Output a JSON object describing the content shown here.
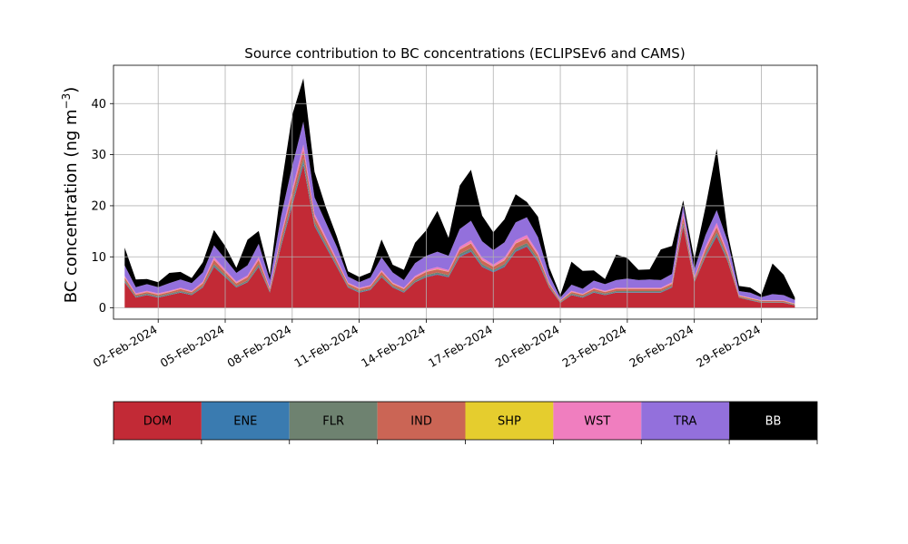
{
  "chart_data": {
    "type": "area",
    "stacked": true,
    "title": "Source contribution to BC concentrations (ECLIPSEv6 and CAMS)",
    "ylabel": "BC concentration (ng m",
    "ylabel_superscript": "−3",
    "ylabel_close": ")",
    "xlabel": "",
    "xlim": [
      "2024-01-31T00:00",
      "2024-03-02T12:00"
    ],
    "ylim": [
      -2.2,
      47.5
    ],
    "grid": true,
    "x_ticks": [
      "2024-02-02",
      "2024-02-05",
      "2024-02-08",
      "2024-02-11",
      "2024-02-14",
      "2024-02-17",
      "2024-02-20",
      "2024-02-23",
      "2024-02-26",
      "2024-02-29"
    ],
    "x_tick_labels": [
      "02-Feb-2024",
      "05-Feb-2024",
      "08-Feb-2024",
      "11-Feb-2024",
      "14-Feb-2024",
      "17-Feb-2024",
      "20-Feb-2024",
      "23-Feb-2024",
      "26-Feb-2024",
      "29-Feb-2024"
    ],
    "y_ticks": [
      0,
      10,
      20,
      30,
      40
    ],
    "y_tick_labels": [
      "0",
      "10",
      "20",
      "30",
      "40"
    ],
    "x": [
      "2024-01-31T12:00",
      "2024-02-01T00:00",
      "2024-02-01T12:00",
      "2024-02-02T00:00",
      "2024-02-02T12:00",
      "2024-02-03T00:00",
      "2024-02-03T12:00",
      "2024-02-04T00:00",
      "2024-02-04T12:00",
      "2024-02-05T00:00",
      "2024-02-05T12:00",
      "2024-02-06T00:00",
      "2024-02-06T12:00",
      "2024-02-07T00:00",
      "2024-02-07T12:00",
      "2024-02-08T00:00",
      "2024-02-08T12:00",
      "2024-02-09T00:00",
      "2024-02-09T12:00",
      "2024-02-10T00:00",
      "2024-02-10T12:00",
      "2024-02-11T00:00",
      "2024-02-11T12:00",
      "2024-02-12T00:00",
      "2024-02-12T12:00",
      "2024-02-13T00:00",
      "2024-02-13T12:00",
      "2024-02-14T00:00",
      "2024-02-14T12:00",
      "2024-02-15T00:00",
      "2024-02-15T12:00",
      "2024-02-16T00:00",
      "2024-02-16T12:00",
      "2024-02-17T00:00",
      "2024-02-17T12:00",
      "2024-02-18T00:00",
      "2024-02-18T12:00",
      "2024-02-19T00:00",
      "2024-02-19T12:00",
      "2024-02-20T00:00",
      "2024-02-20T12:00",
      "2024-02-21T00:00",
      "2024-02-21T12:00",
      "2024-02-22T00:00",
      "2024-02-22T12:00",
      "2024-02-23T00:00",
      "2024-02-23T12:00",
      "2024-02-24T00:00",
      "2024-02-24T12:00",
      "2024-02-25T00:00",
      "2024-02-25T12:00",
      "2024-02-26T00:00",
      "2024-02-26T12:00",
      "2024-02-27T00:00",
      "2024-02-27T12:00",
      "2024-02-28T00:00",
      "2024-02-28T12:00",
      "2024-02-29T00:00",
      "2024-02-29T12:00",
      "2024-03-01T00:00",
      "2024-03-01T12:00"
    ],
    "series": [
      {
        "name": "DOM",
        "color": "#c22a36",
        "values": [
          5.0,
          2.0,
          2.5,
          2.0,
          2.5,
          3.0,
          2.5,
          4.0,
          8.0,
          6.0,
          4.0,
          5.0,
          8.0,
          3.0,
          12.0,
          20.0,
          28.0,
          16.0,
          12.0,
          8.0,
          4.0,
          3.0,
          3.5,
          6.0,
          4.0,
          3.0,
          5.0,
          6.0,
          6.5,
          6.0,
          10.0,
          11.0,
          8.0,
          7.0,
          8.0,
          11.0,
          12.0,
          9.0,
          4.0,
          1.0,
          2.5,
          2.0,
          3.0,
          2.5,
          3.0,
          3.0,
          3.0,
          3.0,
          3.0,
          4.0,
          16.0,
          5.0,
          10.0,
          14.0,
          9.0,
          2.0,
          1.5,
          1.0,
          1.0,
          1.0,
          0.5
        ]
      },
      {
        "name": "ENE",
        "color": "#3a7bb0",
        "values": [
          0.15,
          0.1,
          0.1,
          0.1,
          0.1,
          0.1,
          0.1,
          0.1,
          0.2,
          0.15,
          0.1,
          0.1,
          0.2,
          0.1,
          0.3,
          0.4,
          0.5,
          0.3,
          0.25,
          0.2,
          0.1,
          0.1,
          0.1,
          0.15,
          0.1,
          0.1,
          0.1,
          0.15,
          0.15,
          0.15,
          0.2,
          0.2,
          0.2,
          0.15,
          0.2,
          0.2,
          0.2,
          0.2,
          0.1,
          0.05,
          0.1,
          0.1,
          0.1,
          0.1,
          0.1,
          0.1,
          0.1,
          0.1,
          0.1,
          0.1,
          0.3,
          0.1,
          0.2,
          0.3,
          0.2,
          0.05,
          0.05,
          0.05,
          0.05,
          0.05,
          0.05
        ]
      },
      {
        "name": "FLR",
        "color": "#6e8270",
        "values": [
          0.3,
          0.2,
          0.2,
          0.2,
          0.2,
          0.2,
          0.2,
          0.2,
          0.4,
          0.3,
          0.2,
          0.3,
          0.4,
          0.2,
          0.5,
          0.6,
          0.8,
          0.5,
          0.4,
          0.3,
          0.2,
          0.2,
          0.2,
          0.3,
          0.2,
          0.2,
          0.3,
          0.3,
          0.3,
          0.3,
          0.4,
          0.5,
          0.4,
          0.3,
          0.4,
          0.5,
          0.5,
          0.4,
          0.2,
          0.1,
          0.2,
          0.2,
          0.2,
          0.2,
          0.2,
          0.2,
          0.2,
          0.2,
          0.2,
          0.2,
          0.5,
          0.2,
          0.4,
          0.5,
          0.4,
          0.1,
          0.1,
          0.1,
          0.1,
          0.1,
          0.1
        ]
      },
      {
        "name": "IND",
        "color": "#cb6555",
        "values": [
          0.5,
          0.3,
          0.3,
          0.3,
          0.3,
          0.4,
          0.3,
          0.5,
          0.8,
          0.6,
          0.5,
          0.6,
          0.8,
          0.4,
          1.0,
          1.4,
          1.6,
          1.0,
          0.8,
          0.6,
          0.4,
          0.4,
          0.4,
          0.6,
          0.4,
          0.4,
          0.5,
          0.6,
          0.6,
          0.6,
          0.8,
          0.9,
          0.7,
          0.6,
          0.7,
          0.9,
          0.9,
          0.7,
          0.4,
          0.2,
          0.3,
          0.3,
          0.4,
          0.3,
          0.4,
          0.4,
          0.4,
          0.4,
          0.4,
          0.4,
          1.0,
          0.4,
          0.8,
          1.0,
          0.7,
          0.2,
          0.2,
          0.2,
          0.2,
          0.2,
          0.1
        ]
      },
      {
        "name": "SHP",
        "color": "#e5cd2e",
        "values": [
          0.05,
          0.05,
          0.05,
          0.05,
          0.05,
          0.05,
          0.05,
          0.05,
          0.05,
          0.05,
          0.05,
          0.05,
          0.05,
          0.05,
          0.05,
          0.05,
          0.05,
          0.05,
          0.05,
          0.05,
          0.05,
          0.05,
          0.05,
          0.05,
          0.05,
          0.05,
          0.05,
          0.05,
          0.05,
          0.05,
          0.05,
          0.05,
          0.05,
          0.05,
          0.05,
          0.05,
          0.05,
          0.05,
          0.05,
          0.05,
          0.05,
          0.05,
          0.05,
          0.05,
          0.05,
          0.05,
          0.05,
          0.05,
          0.05,
          0.05,
          0.05,
          0.05,
          0.05,
          0.05,
          0.05,
          0.05,
          0.05,
          0.05,
          0.05,
          0.05,
          0.05
        ]
      },
      {
        "name": "WST",
        "color": "#f07ebf",
        "values": [
          0.3,
          0.2,
          0.2,
          0.2,
          0.2,
          0.2,
          0.2,
          0.3,
          0.5,
          0.4,
          0.3,
          0.3,
          0.5,
          0.2,
          0.6,
          0.8,
          1.0,
          0.6,
          0.5,
          0.4,
          0.2,
          0.2,
          0.2,
          0.3,
          0.2,
          0.2,
          0.3,
          0.3,
          0.4,
          0.3,
          0.5,
          0.6,
          0.5,
          0.4,
          0.5,
          0.6,
          0.6,
          0.5,
          0.2,
          0.1,
          0.2,
          0.1,
          0.2,
          0.2,
          0.2,
          0.2,
          0.2,
          0.2,
          0.2,
          0.3,
          0.8,
          0.3,
          0.6,
          0.8,
          0.5,
          0.1,
          0.1,
          0.1,
          0.1,
          0.1,
          0.05
        ]
      },
      {
        "name": "TRA",
        "color": "#9370dc",
        "values": [
          2.0,
          1.2,
          1.3,
          1.2,
          1.5,
          1.6,
          1.5,
          1.8,
          2.3,
          2.1,
          1.7,
          2.0,
          2.6,
          1.5,
          3.5,
          4.5,
          4.5,
          3.2,
          2.8,
          2.4,
          1.2,
          1.1,
          1.5,
          2.5,
          2.0,
          1.5,
          2.5,
          2.8,
          3.0,
          2.8,
          3.5,
          3.8,
          3.2,
          2.8,
          3.0,
          3.5,
          3.5,
          3.0,
          1.5,
          0.5,
          1.2,
          1.0,
          1.4,
          1.3,
          1.5,
          1.8,
          1.5,
          1.6,
          1.5,
          1.6,
          1.4,
          1.5,
          2.2,
          2.5,
          2.1,
          0.8,
          1.0,
          0.6,
          1.2,
          1.0,
          0.7
        ]
      },
      {
        "name": "BB",
        "color": "#000000",
        "values": [
          3.5,
          1.5,
          1.0,
          1.0,
          2.0,
          1.5,
          1.0,
          2.0,
          3.0,
          2.5,
          1.0,
          5.0,
          2.5,
          1.0,
          5.5,
          10.0,
          8.5,
          5.0,
          3.0,
          2.0,
          1.0,
          1.0,
          1.0,
          3.5,
          1.5,
          2.0,
          4.0,
          5.0,
          8.0,
          3.5,
          8.5,
          10.0,
          5.0,
          3.5,
          4.5,
          5.5,
          3.0,
          4.0,
          1.5,
          0.5,
          4.5,
          3.5,
          2.0,
          1.0,
          5.0,
          4.0,
          2.0,
          2.0,
          6.0,
          5.5,
          1.0,
          2.0,
          5.5,
          12.0,
          1.5,
          1.0,
          1.0,
          0.5,
          6.0,
          4.0,
          0.5
        ]
      }
    ],
    "legend": {
      "placement": "bottom",
      "entries": [
        {
          "name": "DOM",
          "color": "#c22a36",
          "text_color": "#000000"
        },
        {
          "name": "ENE",
          "color": "#3a7bb0",
          "text_color": "#000000"
        },
        {
          "name": "FLR",
          "color": "#6e8270",
          "text_color": "#000000"
        },
        {
          "name": "IND",
          "color": "#cb6555",
          "text_color": "#000000"
        },
        {
          "name": "SHP",
          "color": "#e5cd2e",
          "text_color": "#000000"
        },
        {
          "name": "WST",
          "color": "#f07ebf",
          "text_color": "#000000"
        },
        {
          "name": "TRA",
          "color": "#9370dc",
          "text_color": "#000000"
        },
        {
          "name": "BB",
          "color": "#000000",
          "text_color": "#ffffff"
        }
      ]
    }
  }
}
